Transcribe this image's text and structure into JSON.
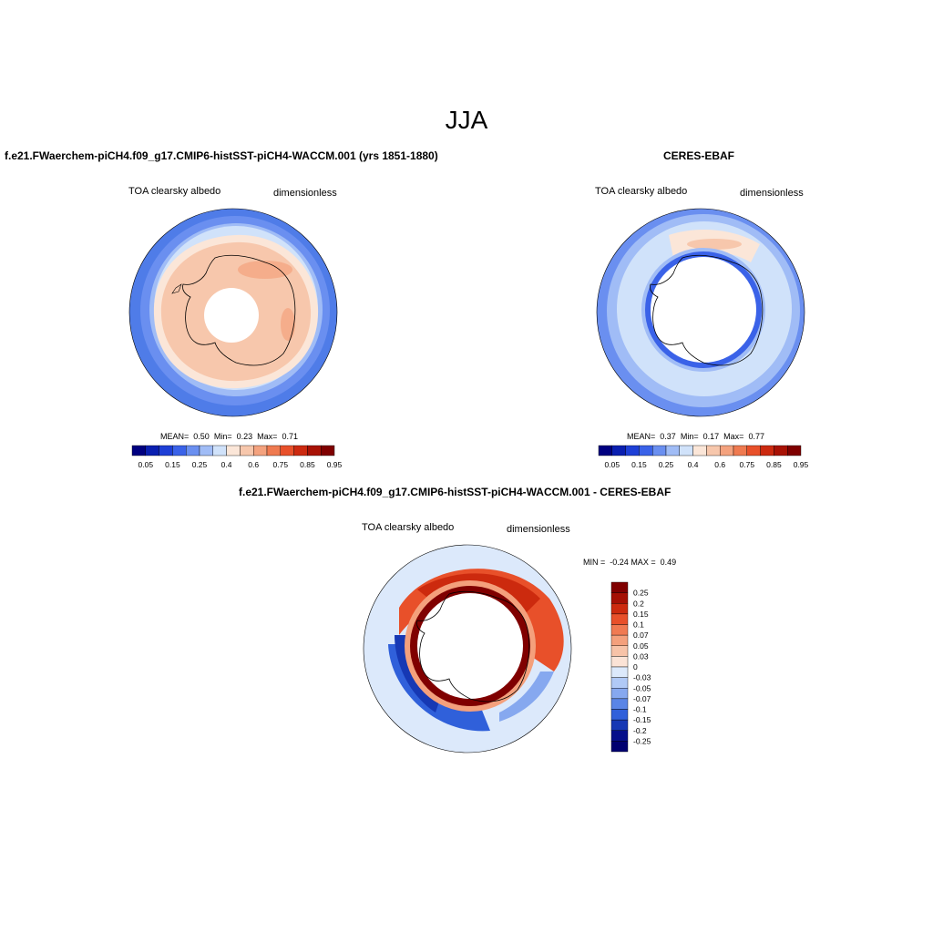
{
  "figure": {
    "title": "JJA"
  },
  "panels": [
    {
      "id": "model",
      "title": "f.e21.FWaerchem-piCH4.f09_g17.CMIP6-histSST-piCH4-WACCM.001 (yrs 1851-1880)",
      "variable": "TOA clearsky albedo",
      "units": "dimensionless",
      "stats": {
        "mean_label": "MEAN=",
        "mean": "0.50",
        "min_label": "Min=",
        "min": "0.23",
        "max_label": "Max=",
        "max": "0.71"
      },
      "colorbar_labels": [
        "0.05",
        "0.15",
        "0.25",
        "0.4",
        "0.6",
        "0.75",
        "0.85",
        "0.95"
      ]
    },
    {
      "id": "obs",
      "title": "CERES-EBAF",
      "variable": "TOA clearsky albedo",
      "units": "dimensionless",
      "stats": {
        "mean_label": "MEAN=",
        "mean": "0.37",
        "min_label": "Min=",
        "min": "0.17",
        "max_label": "Max=",
        "max": "0.77"
      },
      "colorbar_labels": [
        "0.05",
        "0.15",
        "0.25",
        "0.4",
        "0.6",
        "0.75",
        "0.85",
        "0.95"
      ]
    },
    {
      "id": "diff",
      "title": "f.e21.FWaerchem-piCH4.f09_g17.CMIP6-histSST-piCH4-WACCM.001 - CERES-EBAF",
      "variable": "TOA clearsky albedo",
      "units": "dimensionless",
      "stats": {
        "min_label": "MIN =",
        "min": "-0.24",
        "max_label": "MAX =",
        "max": "0.49"
      },
      "colorbar_labels": [
        "0.25",
        "0.2",
        "0.15",
        "0.1",
        "0.07",
        "0.05",
        "0.03",
        "0",
        "-0.03",
        "-0.05",
        "-0.07",
        "-0.1",
        "-0.15",
        "-0.2",
        "-0.25"
      ]
    }
  ],
  "palettes": {
    "sequential": [
      "#000080",
      "#0a1fb0",
      "#1e3fd6",
      "#3a62e8",
      "#6a8ff0",
      "#a0bcf6",
      "#d0e2fa",
      "#fbe6d8",
      "#f7c7ac",
      "#f4a27e",
      "#ef7a50",
      "#e8502a",
      "#cc2a10",
      "#a81205",
      "#7f0000"
    ],
    "diverging": [
      "#800000",
      "#a51004",
      "#cc2a0e",
      "#e8502a",
      "#f07a52",
      "#f4a07c",
      "#f7c3a8",
      "#fbe3d6",
      "#dce9fb",
      "#b0c9f6",
      "#86a8ef",
      "#5a85e6",
      "#3060da",
      "#1638b4",
      "#050f8a",
      "#000070"
    ]
  }
}
